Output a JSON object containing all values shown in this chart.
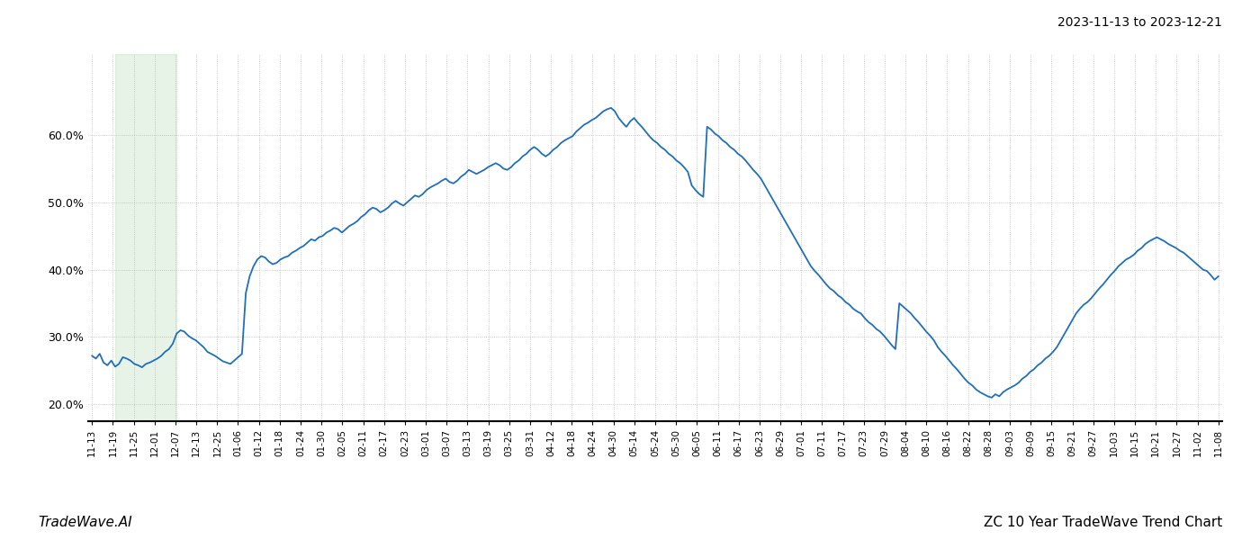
{
  "title_top_right": "2023-11-13 to 2023-12-21",
  "title_bottom_right": "ZC 10 Year TradeWave Trend Chart",
  "title_bottom_left": "TradeWave.AI",
  "line_color": "#1f6fba",
  "line_width": 1.3,
  "shade_color": "#c8e6c9",
  "shade_alpha": 0.45,
  "background_color": "#ffffff",
  "grid_color": "#aaaaaa",
  "ylim": [
    0.175,
    0.72
  ],
  "yticks": [
    0.2,
    0.3,
    0.4,
    0.5,
    0.6
  ],
  "x_labels": [
    "11-13",
    "11-19",
    "11-25",
    "12-01",
    "12-07",
    "12-13",
    "12-25",
    "01-06",
    "01-12",
    "01-18",
    "01-24",
    "01-30",
    "02-05",
    "02-11",
    "02-17",
    "02-23",
    "03-01",
    "03-07",
    "03-13",
    "03-19",
    "03-25",
    "03-31",
    "04-12",
    "04-18",
    "04-24",
    "04-30",
    "05-14",
    "05-24",
    "05-30",
    "06-05",
    "06-11",
    "06-17",
    "06-23",
    "06-29",
    "07-01",
    "07-11",
    "07-17",
    "07-23",
    "07-29",
    "08-04",
    "08-10",
    "08-16",
    "08-22",
    "08-28",
    "09-03",
    "09-09",
    "09-15",
    "09-21",
    "09-27",
    "10-03",
    "10-15",
    "10-21",
    "10-27",
    "11-02",
    "11-08"
  ],
  "shade_label_start": "11-19",
  "shade_label_end": "12-13",
  "y_values": [
    0.272,
    0.268,
    0.275,
    0.262,
    0.258,
    0.265,
    0.256,
    0.26,
    0.27,
    0.268,
    0.265,
    0.26,
    0.258,
    0.255,
    0.26,
    0.262,
    0.265,
    0.268,
    0.272,
    0.278,
    0.282,
    0.29,
    0.305,
    0.31,
    0.308,
    0.302,
    0.298,
    0.295,
    0.29,
    0.285,
    0.278,
    0.275,
    0.272,
    0.268,
    0.264,
    0.262,
    0.26,
    0.265,
    0.27,
    0.275,
    0.365,
    0.39,
    0.405,
    0.415,
    0.42,
    0.418,
    0.412,
    0.408,
    0.41,
    0.415,
    0.418,
    0.42,
    0.425,
    0.428,
    0.432,
    0.435,
    0.44,
    0.445,
    0.443,
    0.448,
    0.45,
    0.455,
    0.458,
    0.462,
    0.46,
    0.455,
    0.46,
    0.465,
    0.468,
    0.472,
    0.478,
    0.482,
    0.488,
    0.492,
    0.49,
    0.485,
    0.488,
    0.492,
    0.498,
    0.502,
    0.498,
    0.495,
    0.5,
    0.505,
    0.51,
    0.508,
    0.512,
    0.518,
    0.522,
    0.525,
    0.528,
    0.532,
    0.535,
    0.53,
    0.528,
    0.532,
    0.538,
    0.542,
    0.548,
    0.545,
    0.542,
    0.545,
    0.548,
    0.552,
    0.555,
    0.558,
    0.555,
    0.55,
    0.548,
    0.552,
    0.558,
    0.562,
    0.568,
    0.572,
    0.578,
    0.582,
    0.578,
    0.572,
    0.568,
    0.572,
    0.578,
    0.582,
    0.588,
    0.592,
    0.595,
    0.598,
    0.605,
    0.61,
    0.615,
    0.618,
    0.622,
    0.625,
    0.63,
    0.635,
    0.638,
    0.64,
    0.635,
    0.625,
    0.618,
    0.612,
    0.62,
    0.625,
    0.618,
    0.612,
    0.605,
    0.598,
    0.592,
    0.588,
    0.582,
    0.578,
    0.572,
    0.568,
    0.562,
    0.558,
    0.552,
    0.545,
    0.525,
    0.518,
    0.512,
    0.508,
    0.612,
    0.608,
    0.602,
    0.598,
    0.592,
    0.588,
    0.582,
    0.578,
    0.572,
    0.568,
    0.562,
    0.555,
    0.548,
    0.542,
    0.535,
    0.525,
    0.515,
    0.505,
    0.495,
    0.485,
    0.475,
    0.465,
    0.455,
    0.445,
    0.435,
    0.425,
    0.415,
    0.405,
    0.398,
    0.392,
    0.385,
    0.378,
    0.372,
    0.368,
    0.362,
    0.358,
    0.352,
    0.348,
    0.342,
    0.338,
    0.335,
    0.328,
    0.322,
    0.318,
    0.312,
    0.308,
    0.302,
    0.295,
    0.288,
    0.282,
    0.35,
    0.345,
    0.34,
    0.335,
    0.328,
    0.322,
    0.315,
    0.308,
    0.302,
    0.295,
    0.285,
    0.278,
    0.272,
    0.265,
    0.258,
    0.252,
    0.245,
    0.238,
    0.232,
    0.228,
    0.222,
    0.218,
    0.215,
    0.212,
    0.21,
    0.215,
    0.212,
    0.218,
    0.222,
    0.225,
    0.228,
    0.232,
    0.238,
    0.242,
    0.248,
    0.252,
    0.258,
    0.262,
    0.268,
    0.272,
    0.278,
    0.285,
    0.295,
    0.305,
    0.315,
    0.325,
    0.335,
    0.342,
    0.348,
    0.352,
    0.358,
    0.365,
    0.372,
    0.378,
    0.385,
    0.392,
    0.398,
    0.405,
    0.41,
    0.415,
    0.418,
    0.422,
    0.428,
    0.432,
    0.438,
    0.442,
    0.445,
    0.448,
    0.445,
    0.442,
    0.438,
    0.435,
    0.432,
    0.428,
    0.425,
    0.42,
    0.415,
    0.41,
    0.405,
    0.4,
    0.398,
    0.392,
    0.385,
    0.39
  ]
}
